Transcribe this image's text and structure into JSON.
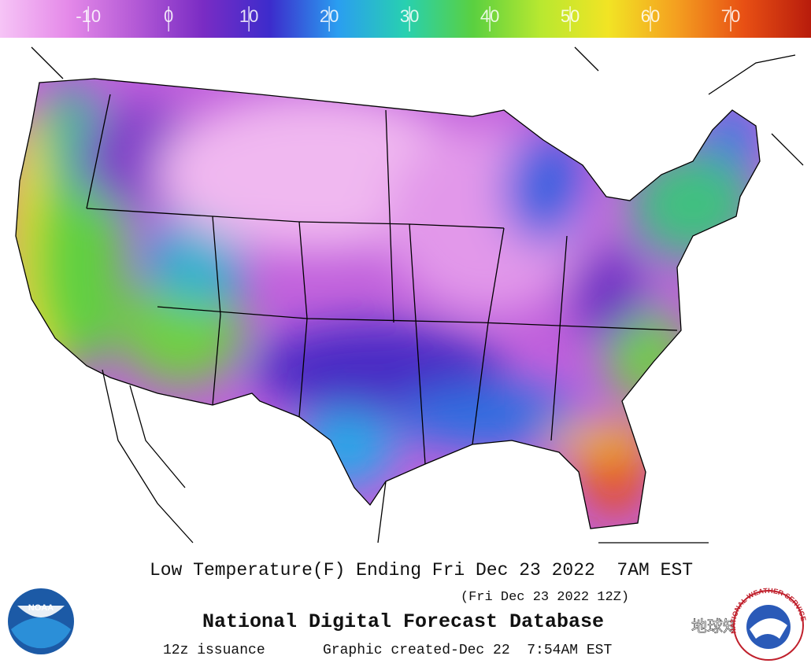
{
  "colorbar": {
    "lim": [
      -21,
      80
    ],
    "ticks": [
      -10,
      0,
      10,
      20,
      30,
      40,
      50,
      60,
      70
    ],
    "colors": [
      "#f6c4f6",
      "#e58ae9",
      "#b45ad6",
      "#7a2cc4",
      "#3c2ccc",
      "#2a9ef0",
      "#28d0b0",
      "#5ad040",
      "#b8e830",
      "#f2e424",
      "#f4a020",
      "#e85014",
      "#b81c0c"
    ]
  },
  "footer": {
    "title": "Low Temperature(F) Ending Fri Dec 23 2022  7AM EST",
    "subtitle": "(Fri Dec 23 2022 12Z)",
    "database": "National Digital Forecast Database",
    "issuance": "12z issuance",
    "created": "Graphic created-Dec 22  7:54AM EST"
  },
  "logos": {
    "noaa": "NOAA",
    "nws": "NATIONAL WEATHER SERVICE"
  },
  "watermark": "地球知识局"
}
